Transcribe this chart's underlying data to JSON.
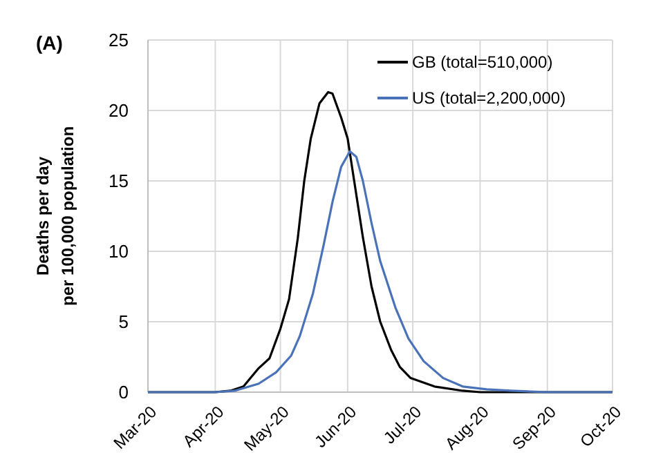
{
  "chart_data": {
    "type": "line",
    "ylabel": "Deaths per day\nper 100,000 population",
    "annotations": [
      "(A)"
    ],
    "xlim": [
      "2020-03-01",
      "2020-10-01"
    ],
    "xticks": [
      {
        "value": "2020-03-01",
        "label": "Mar-20"
      },
      {
        "value": "2020-04-01",
        "label": "Apr-20"
      },
      {
        "value": "2020-05-01",
        "label": "May-20"
      },
      {
        "value": "2020-06-01",
        "label": "Jun-20"
      },
      {
        "value": "2020-07-01",
        "label": "Jul-20"
      },
      {
        "value": "2020-08-01",
        "label": "Aug-20"
      },
      {
        "value": "2020-09-01",
        "label": "Sep-20"
      },
      {
        "value": "2020-10-01",
        "label": "Oct-20"
      }
    ],
    "ylim": [
      0,
      25
    ],
    "yticks": [
      0,
      5,
      10,
      15,
      20,
      25
    ],
    "grid": true,
    "legend": "top right",
    "line_style": "solid",
    "marker": "none",
    "series": [
      {
        "name": "GB (total=510,000)",
        "color": "#000000",
        "x": [
          "2020-03-01",
          "2020-04-01",
          "2020-04-08",
          "2020-04-14",
          "2020-04-21",
          "2020-04-26",
          "2020-05-01",
          "2020-05-05",
          "2020-05-09",
          "2020-05-12",
          "2020-05-15",
          "2020-05-19",
          "2020-05-23",
          "2020-05-25",
          "2020-05-29",
          "2020-06-01",
          "2020-06-04",
          "2020-06-08",
          "2020-06-12",
          "2020-06-16",
          "2020-06-21",
          "2020-06-25",
          "2020-06-30",
          "2020-07-11",
          "2020-07-24",
          "2020-08-01",
          "2020-10-01"
        ],
        "values": [
          0,
          0,
          0.1,
          0.4,
          1.7,
          2.4,
          4.5,
          6.6,
          10.9,
          15,
          18,
          20.5,
          21.3,
          21.2,
          19.5,
          18,
          15,
          11,
          7.5,
          5,
          3,
          1.8,
          1,
          0.4,
          0.1,
          0,
          0
        ]
      },
      {
        "name": "US (total=2,200,000)",
        "color": "#4a72b8",
        "x": [
          "2020-03-01",
          "2020-04-01",
          "2020-04-10",
          "2020-04-21",
          "2020-04-29",
          "2020-05-06",
          "2020-05-10",
          "2020-05-16",
          "2020-05-21",
          "2020-05-25",
          "2020-05-29",
          "2020-06-02",
          "2020-06-05",
          "2020-06-08",
          "2020-06-12",
          "2020-06-16",
          "2020-06-23",
          "2020-06-29",
          "2020-07-06",
          "2020-07-15",
          "2020-07-24",
          "2020-08-04",
          "2020-08-15",
          "2020-09-01",
          "2020-10-01"
        ],
        "values": [
          0,
          0,
          0.1,
          0.6,
          1.4,
          2.6,
          4,
          7,
          10.5,
          13.5,
          16,
          17.1,
          16.7,
          15,
          12,
          9.3,
          6,
          3.8,
          2.2,
          1,
          0.4,
          0.2,
          0.1,
          0,
          0
        ]
      }
    ]
  }
}
